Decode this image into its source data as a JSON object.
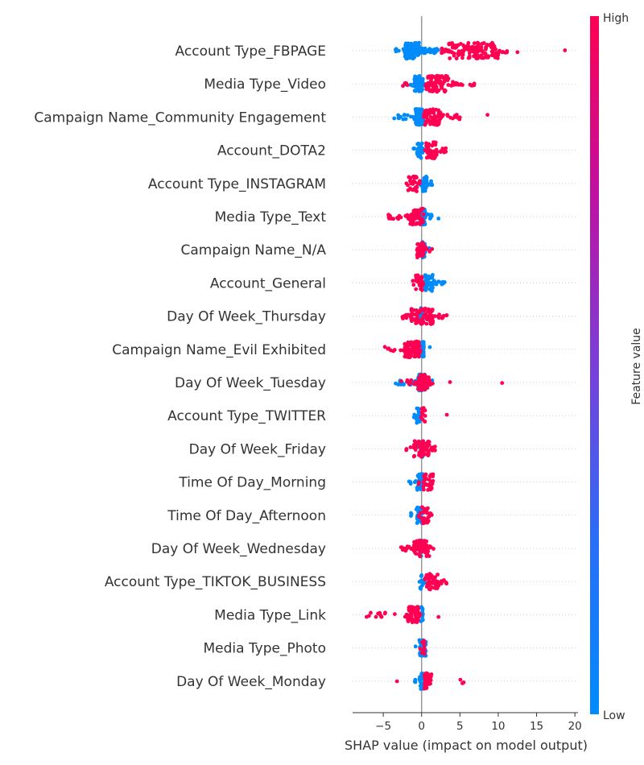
{
  "chart_data": {
    "type": "scatter",
    "subtype": "shap-beeswarm",
    "xlabel": "SHAP value (impact on model output)",
    "xlim": [
      -9,
      20.4
    ],
    "x_ticks": [
      -5,
      0,
      5,
      10,
      15,
      20
    ],
    "zero_line": 0,
    "colorbar": {
      "label": "Feature value",
      "high_label": "High",
      "low_label": "Low",
      "high_color": "#ff0052",
      "low_color": "#008bfb"
    },
    "features": [
      {
        "name": "Account Type_FBPAGE",
        "low": [
          [
            -3.5,
            3.0
          ],
          [
            -0.5,
            0.5
          ]
        ],
        "high": [
          [
            2.5,
            11.5
          ],
          [
            12.5
          ],
          [
            18.7
          ]
        ],
        "dense_low": [
          -2.2,
          -0.3
        ],
        "dense_high": [
          3.5,
          10
        ]
      },
      {
        "name": "Media Type_Video",
        "low": [
          [
            -2.2,
            0.5
          ]
        ],
        "high": [
          [
            -2.7,
            -1.8
          ],
          [
            0.3,
            5.5
          ],
          [
            6.3,
            7.0
          ]
        ],
        "dense_low": [
          -1.0,
          0.2
        ],
        "dense_high": [
          0.6,
          3.5
        ]
      },
      {
        "name": "Campaign Name_Community Engagement ",
        "low": [
          [
            -3.6,
            0.5
          ]
        ],
        "high": [
          [
            0.2,
            5.3
          ],
          [
            8.6
          ]
        ],
        "dense_low": [
          -0.8,
          0.2
        ],
        "dense_high": [
          0.3,
          2.5
        ]
      },
      {
        "name": "Account_DOTA2",
        "low": [
          [
            -1.1,
            0.4
          ]
        ],
        "high": [
          [
            0.3,
            3.2
          ]
        ],
        "dense_low": [
          -0.6,
          0.1
        ],
        "dense_high": [
          0.6,
          2.0
        ]
      },
      {
        "name": "Account Type_INSTAGRAM",
        "low": [
          [
            -0.2,
            1.6
          ]
        ],
        "high": [
          [
            -2.2,
            -0.2
          ]
        ],
        "dense_low": [
          0.1,
          0.7
        ],
        "dense_high": [
          -1.8,
          -0.6
        ]
      },
      {
        "name": "Media Type_Text",
        "low": [
          [
            -0.6,
            1.5
          ],
          [
            2.2
          ]
        ],
        "high": [
          [
            -4.4,
            0.3
          ]
        ],
        "dense_low": [
          -0.2,
          0.5
        ],
        "dense_high": [
          -1.5,
          0.2
        ]
      },
      {
        "name": "Campaign Name_N/A ",
        "low": [
          [
            -0.3,
            1.0
          ]
        ],
        "high": [
          [
            -1.0,
            1.8
          ]
        ],
        "dense_low": [
          0.1,
          0.5
        ],
        "dense_high": [
          -0.6,
          0.3
        ]
      },
      {
        "name": "Account_General",
        "low": [
          [
            -0.1,
            3.1
          ]
        ],
        "high": [
          [
            -1.5,
            0.4
          ]
        ],
        "dense_low": [
          0.4,
          1.5
        ],
        "dense_high": [
          -0.8,
          0.1
        ]
      },
      {
        "name": "Day Of Week_Thursday",
        "low": [
          [
            -0.6,
            0.5
          ]
        ],
        "high": [
          [
            -2.8,
            3.5
          ]
        ],
        "dense_low": [
          -0.2,
          0.2
        ],
        "dense_high": [
          -1.5,
          1.5
        ]
      },
      {
        "name": "Campaign Name_Evil Exhibited ",
        "low": [
          [
            -0.4,
            1.2
          ]
        ],
        "high": [
          [
            -5.1,
            0.3
          ]
        ],
        "dense_low": [
          -0.1,
          0.3
        ],
        "dense_high": [
          -2.2,
          -0.2
        ]
      },
      {
        "name": "Day Of Week_Tuesday",
        "low": [
          [
            -3.4,
            1.4
          ]
        ],
        "high": [
          [
            -2.8,
            1.6
          ],
          [
            3.7
          ],
          [
            10.5
          ]
        ],
        "dense_low": [
          -0.5,
          0.5
        ],
        "dense_high": [
          -0.5,
          1.0
        ]
      },
      {
        "name": "Account Type_TWITTER",
        "low": [
          [
            -1.0,
            0.0
          ]
        ],
        "high": [
          [
            -0.1,
            0.7
          ],
          [
            3.3
          ]
        ],
        "dense_low": [
          -0.7,
          -0.1
        ],
        "dense_high": [
          0.0,
          0.5
        ]
      },
      {
        "name": "Day Of Week_Friday",
        "low": [
          [
            -0.5,
            0.6
          ]
        ],
        "high": [
          [
            -2.2,
            1.9
          ]
        ],
        "dense_low": [
          -0.2,
          0.2
        ],
        "dense_high": [
          -1.0,
          1.0
        ]
      },
      {
        "name": "Time Of Day_Morning",
        "low": [
          [
            -1.7,
            0.6
          ]
        ],
        "high": [
          [
            -0.4,
            2.1
          ]
        ],
        "dense_low": [
          -0.6,
          0.2
        ],
        "dense_high": [
          0.2,
          1.5
        ]
      },
      {
        "name": "Time Of Day_Afternoon",
        "low": [
          [
            -1.4,
            0.4
          ]
        ],
        "high": [
          [
            -0.5,
            1.6
          ]
        ],
        "dense_low": [
          -0.7,
          0.1
        ],
        "dense_high": [
          0.0,
          1.0
        ]
      },
      {
        "name": "Day Of Week_Wednesday",
        "low": [
          [
            -0.4,
            0.6
          ]
        ],
        "high": [
          [
            -2.7,
            1.7
          ]
        ],
        "dense_low": [
          -0.2,
          0.2
        ],
        "dense_high": [
          -1.0,
          1.0
        ]
      },
      {
        "name": "Account Type_TIKTOK_BUSINESS",
        "low": [
          [
            -0.4,
            0.4
          ]
        ],
        "high": [
          [
            0.3,
            3.3
          ]
        ],
        "dense_low": [
          -0.2,
          0.1
        ],
        "dense_high": [
          0.5,
          2.3
        ]
      },
      {
        "name": "Media Type_Link",
        "low": [
          [
            -0.3,
            0.4
          ]
        ],
        "high": [
          [
            -7.4,
            -4.6
          ],
          [
            -3.5
          ],
          [
            -2.2,
            0.0
          ],
          [
            2.2
          ]
        ],
        "dense_low": [
          -0.1,
          0.2
        ],
        "dense_high": [
          -1.8,
          -0.4
        ]
      },
      {
        "name": "Media Type_Photo",
        "low": [
          [
            -1.0,
            1.4
          ]
        ],
        "high": [
          [
            -0.2,
            0.6
          ]
        ],
        "dense_low": [
          -0.3,
          0.6
        ],
        "dense_high": [
          0.0,
          0.4
        ]
      },
      {
        "name": "Day Of Week_Monday",
        "low": [
          [
            -1.0,
            0.6
          ]
        ],
        "high": [
          [
            -3.2
          ],
          [
            0.2,
            2.3
          ],
          [
            4.8,
            5.6
          ]
        ],
        "dense_low": [
          -0.3,
          0.3
        ],
        "dense_high": [
          0.3,
          1.3
        ]
      }
    ]
  }
}
